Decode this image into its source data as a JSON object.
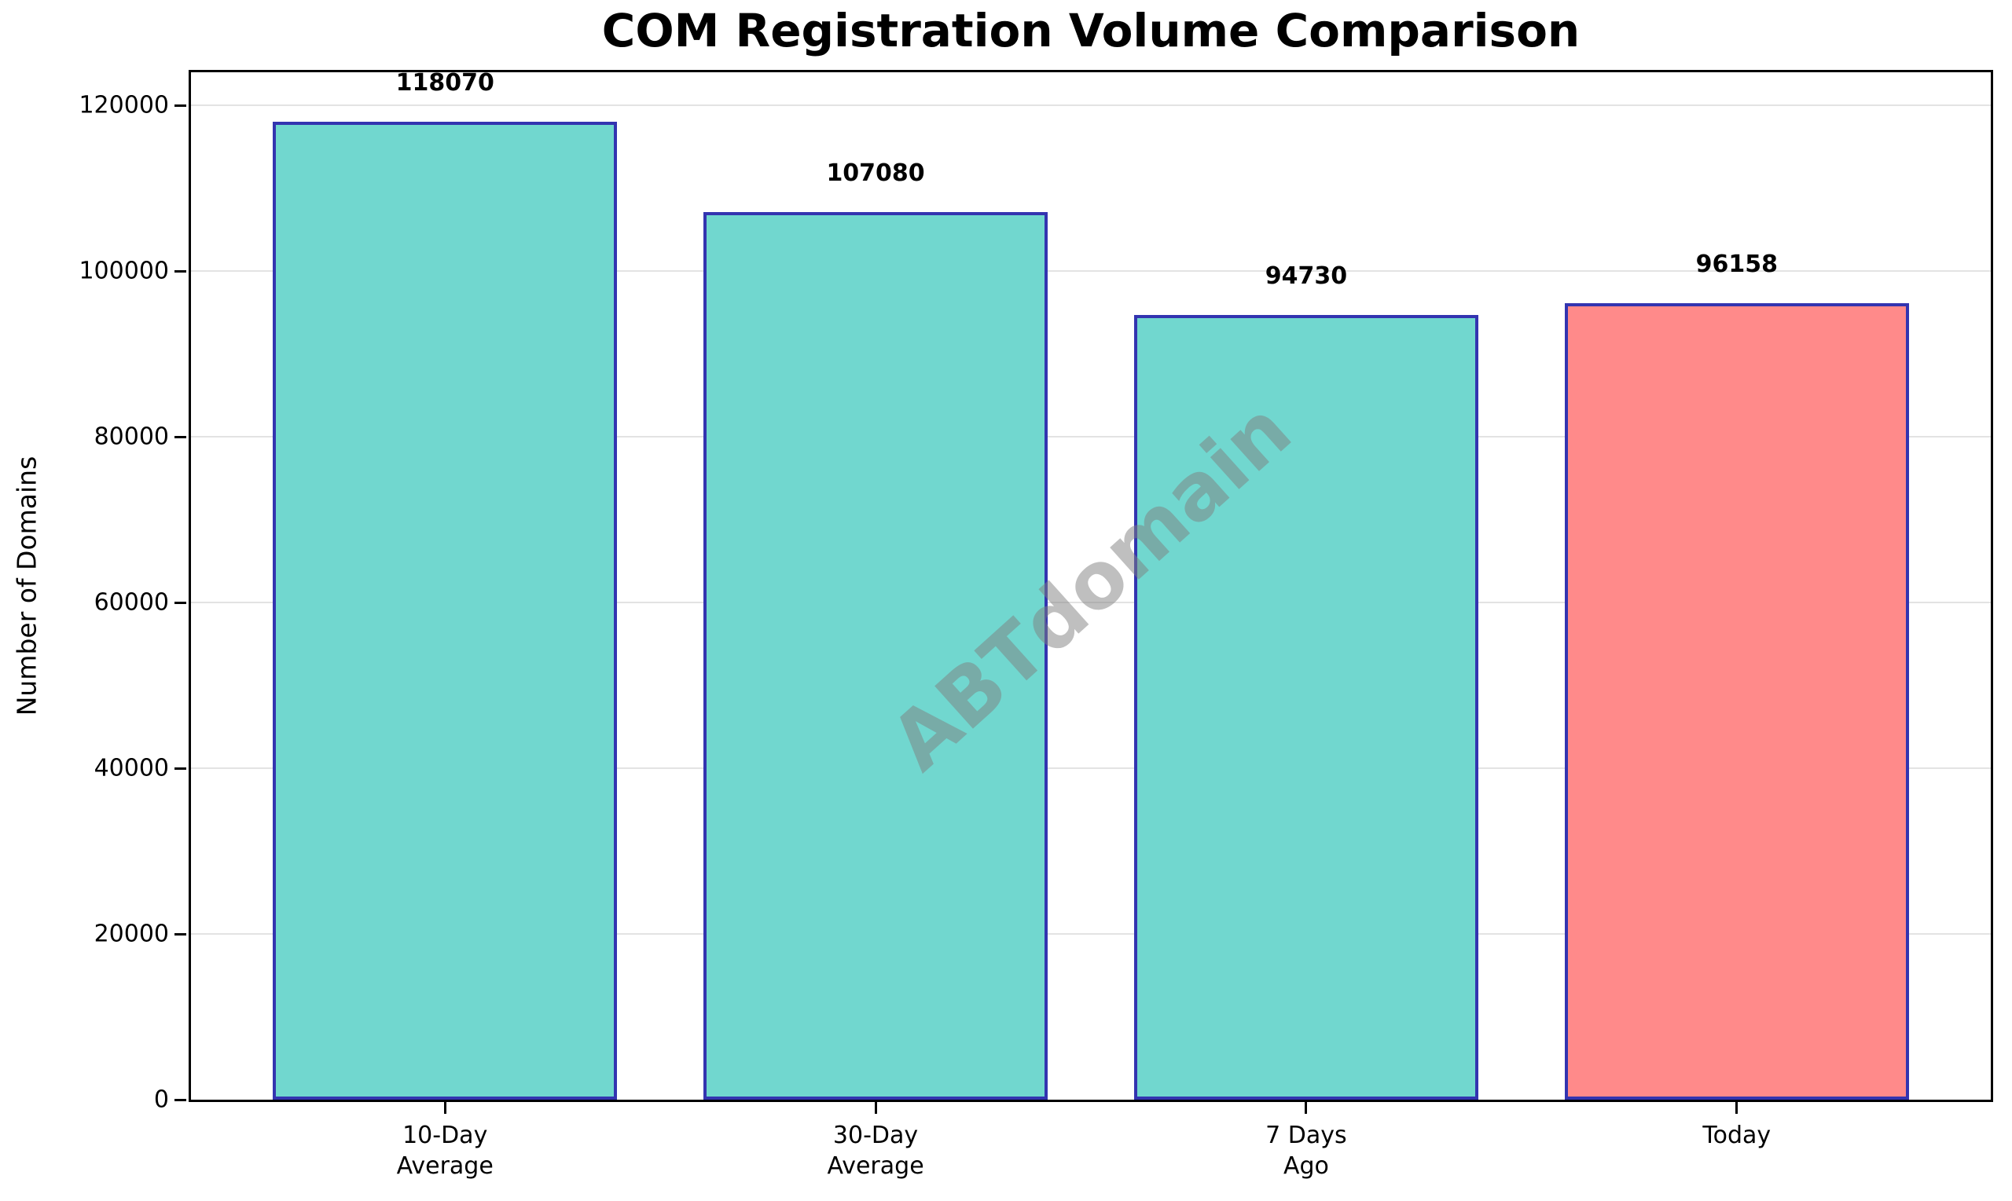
{
  "chart_data": {
    "type": "bar",
    "title": "COM Registration Volume Comparison",
    "xlabel": "",
    "ylabel": "Number of Domains",
    "categories": [
      "10-Day\nAverage",
      "30-Day\nAverage",
      "7 Days\nAgo",
      "Today"
    ],
    "values": [
      118070,
      107080,
      94730,
      96158
    ],
    "value_labels": [
      "118070",
      "107080",
      "94730",
      "96158"
    ],
    "bar_fill_colors": [
      "#71d7cf",
      "#71d7cf",
      "#71d7cf",
      "#ff8a8a"
    ],
    "bar_edge_color": "#3334b0",
    "ylim": [
      0,
      124000
    ],
    "yticks": [
      0,
      20000,
      40000,
      60000,
      80000,
      100000,
      120000
    ],
    "ytick_labels": [
      "0",
      "20000",
      "40000",
      "60000",
      "80000",
      "100000",
      "120000"
    ],
    "grid": "horizontal-light",
    "gridline_color": "#e3e3e3",
    "legend": "none",
    "watermark": "ABTdomain"
  }
}
